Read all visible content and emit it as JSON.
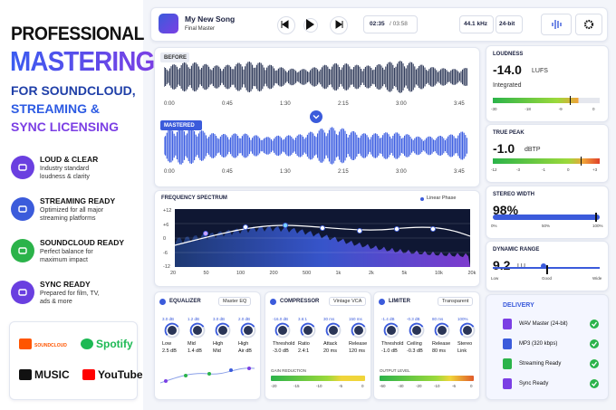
{
  "promo": {
    "title": "PROFESSIONAL",
    "headline": "MASTERING",
    "lines": [
      "FOR SOUNDCLOUD,",
      "STREAMING &",
      "SYNC LICENSING"
    ]
  },
  "features": [
    {
      "title": "LOUD & CLEAR",
      "text": [
        "Industry standard",
        "loudness & clarity"
      ]
    },
    {
      "title": "STREAMING READY",
      "text": [
        "Optimized for all major",
        "streaming platforms"
      ]
    },
    {
      "title": "SOUNDCLOUD READY",
      "text": [
        "Perfect balance for",
        "maximum impact"
      ]
    },
    {
      "title": "SYNC READY",
      "text": [
        "Prepared for film, TV,",
        "ads & more"
      ]
    }
  ],
  "logos": [
    "SOUNDCLOUD",
    "Spotify",
    "MUSIC",
    "YouTube"
  ],
  "player": {
    "song": "My New Song",
    "subtitle": "Final Master",
    "time": "02:35",
    "duration": "/ 03:58",
    "sample_rate": "44.1 kHz",
    "bit_depth": "24-bit"
  },
  "waveform": {
    "before": "BEFORE",
    "mastered": "MASTERED",
    "times": [
      "0:00",
      "0:45",
      "1:30",
      "2:15",
      "3:00",
      "3:45"
    ]
  },
  "spectrum": {
    "title": "FREQUENCY SPECTRUM",
    "mode": "Linear Phase",
    "y_labels": [
      "+12",
      "+6",
      "0",
      "-6",
      "-12"
    ],
    "x_labels": [
      "20",
      "50",
      "100",
      "200",
      "500",
      "1k",
      "2k",
      "5k",
      "10k",
      "20k"
    ]
  },
  "equalizer": {
    "title": "EQUALIZER",
    "preset": "Master EQ",
    "knobs": [
      {
        "top": "3.0 dB",
        "name": "Low",
        "value": "2.5 dB"
      },
      {
        "top": "1.2 dB",
        "name": "Mid",
        "value": "1.4 dB"
      },
      {
        "top": "3.0 dB",
        "name": "High",
        "value": "Mid"
      },
      {
        "top": "2.0 dB",
        "name": "High",
        "value": "Air dB"
      }
    ]
  },
  "compressor": {
    "title": "COMPRESSOR",
    "preset": "Vintage VCA",
    "knobs": [
      {
        "top": "-16.0 dB",
        "name": "Threshold",
        "value": "-3.0 dB"
      },
      {
        "top": "3.6:1",
        "name": "Ratio",
        "value": "2.4:1"
      },
      {
        "top": "30 ms",
        "name": "Attack",
        "value": "20 ms"
      },
      {
        "top": "150 ms",
        "name": "Release",
        "value": "120 ms"
      }
    ],
    "meter": "GAIN REDUCTION",
    "scale": [
      "-20",
      "-15",
      "-10",
      "-5",
      "0"
    ]
  },
  "limiter": {
    "title": "LIMITER",
    "preset": "Transparent",
    "knobs": [
      {
        "top": "-1.4 dB",
        "name": "Threshold",
        "value": "-1.0 dB"
      },
      {
        "top": "-0.3 dB",
        "name": "Ceiling",
        "value": "-0.3 dB"
      },
      {
        "top": "80 ms",
        "name": "Release",
        "value": "80 ms"
      },
      {
        "top": "100%",
        "name": "Stereo",
        "value": "Link"
      }
    ],
    "meter": "OUTPUT LEVEL",
    "scale": [
      "-60",
      "-40",
      "-20",
      "-10",
      "-6",
      "0"
    ]
  },
  "loudness": {
    "title": "LOUDNESS",
    "value": "-14.0",
    "unit": "LUFS",
    "sub": "Integrated",
    "scale": [
      "-30",
      "-18",
      "-9",
      "0"
    ]
  },
  "true_peak": {
    "title": "TRUE PEAK",
    "value": "-1.0",
    "unit": "dBTP",
    "scale": [
      "-12",
      "-3",
      "-1",
      "0",
      "+3"
    ]
  },
  "stereo": {
    "title": "STEREO WIDTH",
    "value": "98%",
    "scale": [
      "0%",
      "50%",
      "100%"
    ]
  },
  "dynamic": {
    "title": "DYNAMIC RANGE",
    "value": "9.2",
    "unit": "LU",
    "scale": [
      "Low",
      "Good",
      "Wide"
    ]
  },
  "delivery": {
    "title": "DELIVERY",
    "items": [
      "WAV Master (24-bit)",
      "MP3 (320 kbps)",
      "Streaming Ready",
      "Sync Ready"
    ]
  }
}
